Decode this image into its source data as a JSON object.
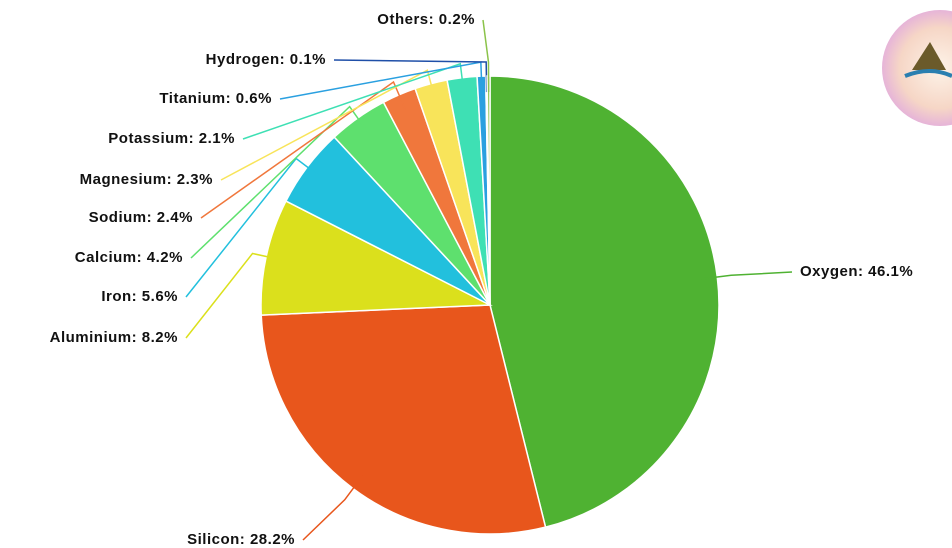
{
  "chart_data": {
    "type": "pie",
    "values": [
      46.1,
      28.2,
      8.2,
      5.6,
      4.2,
      2.4,
      2.3,
      2.1,
      0.6,
      0.1,
      0.2
    ],
    "value_labels": [
      "Oxygen: 46.1%",
      "Silicon: 28.2%",
      "Aluminium: 8.2%",
      "Iron: 5.6%",
      "Calcium: 4.2%",
      "Sodium: 2.4%",
      "Magnesium: 2.3%",
      "Potassium: 2.1%",
      "Titanium: 0.6%",
      "Hydrogen: 0.1%",
      "Others: 0.2%"
    ],
    "colors": [
      "#4fb232",
      "#e8561c",
      "#dbe01c",
      "#22c0dd",
      "#5ee06e",
      "#f0773c",
      "#f8e45a",
      "#3ee0b4",
      "#2aa0e0",
      "#1f4fa8",
      "#8bc34a"
    ]
  }
}
